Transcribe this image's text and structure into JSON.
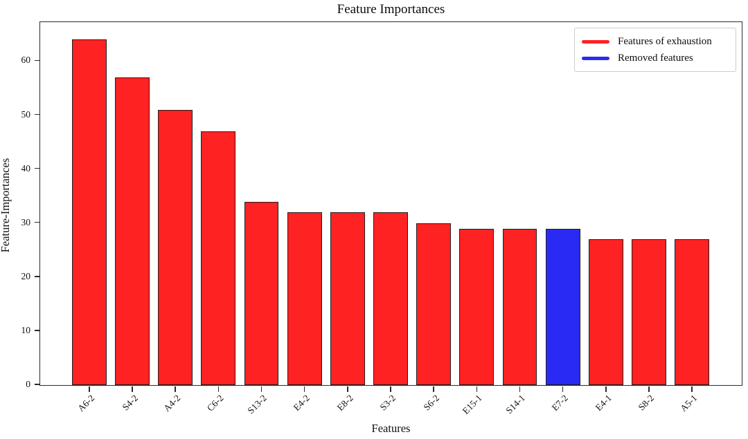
{
  "chart_data": {
    "type": "bar",
    "title": "Feature Importances",
    "xlabel": "Features",
    "ylabel": "Feature-Importances",
    "categories": [
      "A6-2",
      "S4-2",
      "A4-2",
      "C6-2",
      "S13-2",
      "E4-2",
      "E8-2",
      "S3-2",
      "S6-2",
      "E15-1",
      "S14-1",
      "E7-2",
      "E4-1",
      "S8-2",
      "A5-1"
    ],
    "values": [
      64,
      57,
      51,
      47,
      34,
      32,
      32,
      32,
      30,
      29,
      29,
      29,
      27,
      27,
      27
    ],
    "bar_color_keys": [
      "red",
      "red",
      "red",
      "red",
      "red",
      "red",
      "red",
      "red",
      "red",
      "red",
      "red",
      "blue",
      "red",
      "red",
      "red"
    ],
    "yticks": [
      0,
      10,
      20,
      30,
      40,
      50,
      60
    ],
    "ylim": [
      0,
      67.1
    ],
    "grid": false,
    "legend_position": "upper right",
    "legend": [
      {
        "label": "Features of exhaustion",
        "color_key": "red"
      },
      {
        "label": "Removed features",
        "color_key": "blue"
      }
    ]
  },
  "colors": {
    "red": "#ff2222",
    "blue": "#2a2af5",
    "bar_edge": "#1f1f1f",
    "spine": "#2a2a2a",
    "legend_border": "#cccccc"
  }
}
